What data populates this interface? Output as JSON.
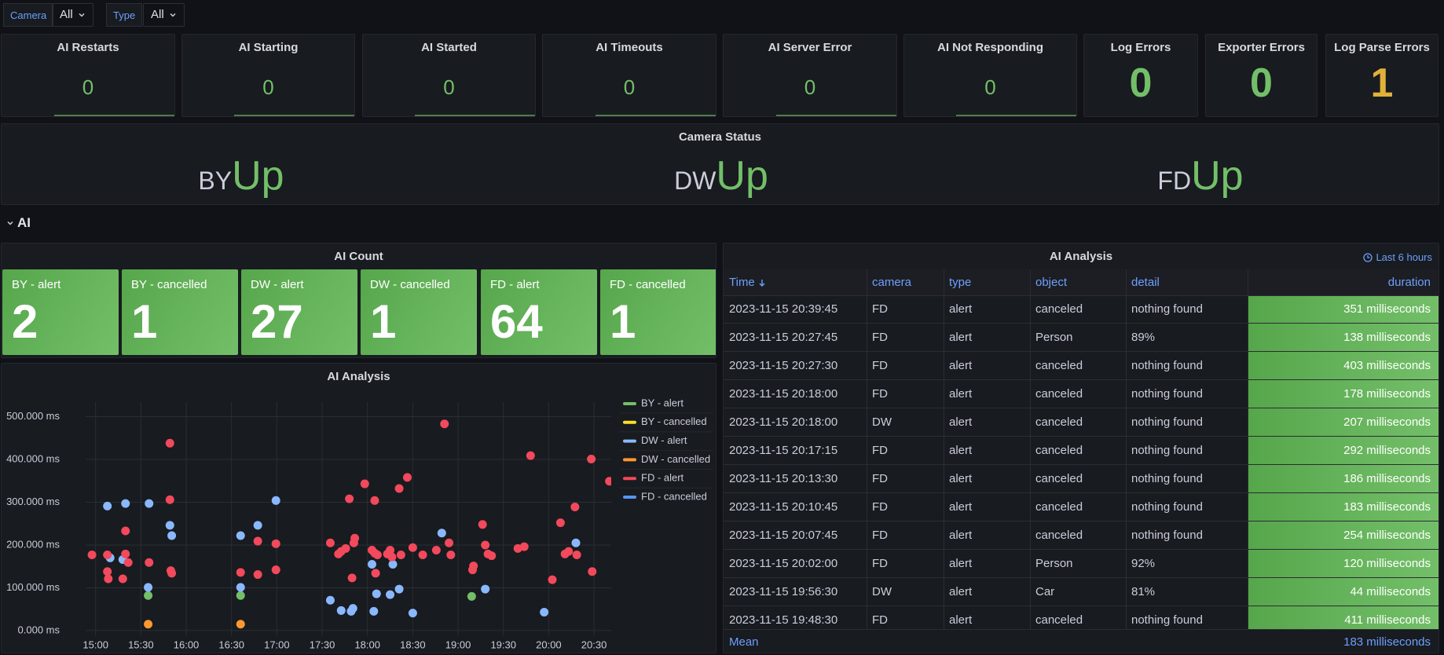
{
  "filters": [
    {
      "label": "Camera",
      "value": "All"
    },
    {
      "label": "Type",
      "value": "All"
    }
  ],
  "stats": [
    {
      "title": "AI Restarts",
      "value": 0,
      "color": "#73bf69"
    },
    {
      "title": "AI Starting",
      "value": 0,
      "color": "#73bf69"
    },
    {
      "title": "AI Started",
      "value": 0,
      "color": "#73bf69"
    },
    {
      "title": "AI Timeouts",
      "value": 0,
      "color": "#73bf69"
    },
    {
      "title": "AI Server Error",
      "value": 0,
      "color": "#73bf69"
    },
    {
      "title": "AI Not Responding",
      "value": 0,
      "color": "#73bf69"
    },
    {
      "title": "Log Errors",
      "value": 0,
      "color": "#73bf69"
    },
    {
      "title": "Exporter Errors",
      "value": 0,
      "color": "#73bf69"
    },
    {
      "title": "Log Parse Errors",
      "value": 1,
      "color": "#e0b13a"
    }
  ],
  "camera_status": {
    "title": "Camera Status",
    "color": "#73bf69",
    "items": [
      {
        "name": "BY",
        "status": "Up"
      },
      {
        "name": "DW",
        "status": "Up"
      },
      {
        "name": "FD",
        "status": "Up"
      }
    ]
  },
  "row_title": "AI",
  "ai_count": {
    "title": "AI Count",
    "tiles": [
      {
        "name": "BY - alert",
        "value": 2
      },
      {
        "name": "BY - cancelled",
        "value": 1
      },
      {
        "name": "DW - alert",
        "value": 27
      },
      {
        "name": "DW - cancelled",
        "value": 1
      },
      {
        "name": "FD - alert",
        "value": 64
      },
      {
        "name": "FD - cancelled",
        "value": 1
      }
    ]
  },
  "chart_data": {
    "type": "scatter",
    "title": "AI Analysis",
    "grid": true,
    "legend": "right",
    "xlim": [
      14.89,
      20.69
    ],
    "xticks": [
      {
        "value": 15,
        "label": "15:00"
      },
      {
        "value": 15.5,
        "label": "15:30"
      },
      {
        "value": 16,
        "label": "16:00"
      },
      {
        "value": 16.5,
        "label": "16:30"
      },
      {
        "value": 17,
        "label": "17:00"
      },
      {
        "value": 17.5,
        "label": "17:30"
      },
      {
        "value": 18,
        "label": "18:00"
      },
      {
        "value": 18.5,
        "label": "18:30"
      },
      {
        "value": 19,
        "label": "19:00"
      },
      {
        "value": 19.5,
        "label": "19:30"
      },
      {
        "value": 20,
        "label": "20:00"
      },
      {
        "value": 20.5,
        "label": "20:30"
      }
    ],
    "ylim": [
      -13,
      534
    ],
    "yticks": [
      {
        "value": 0,
        "label": "0.000 ms"
      },
      {
        "value": 100,
        "label": "100.000 ms"
      },
      {
        "value": 200,
        "label": "200.000 ms"
      },
      {
        "value": 300,
        "label": "300.000 ms"
      },
      {
        "value": 400,
        "label": "400.000 ms"
      },
      {
        "value": 500,
        "label": "500.000 ms"
      }
    ],
    "series": [
      {
        "name": "BY - alert",
        "color": "#73bf69",
        "x": [
          15.58,
          16.6,
          19.15
        ],
        "values": [
          82,
          82,
          80
        ]
      },
      {
        "name": "BY - cancelled",
        "color": "#fade2a",
        "x": [],
        "values": []
      },
      {
        "name": "DW - alert",
        "color": "#8ab8ff",
        "x": [
          15.13,
          15.33,
          15.59,
          15.16,
          15.3,
          15.58,
          15.82,
          15.84,
          16.6,
          16.79,
          16.99,
          16.6,
          17.59,
          17.71,
          17.82,
          17.84,
          18.05,
          18.1,
          18.07,
          18.25,
          18.28,
          18.35,
          18.5,
          18.82,
          19.3,
          19.95,
          20.3
        ],
        "values": [
          291,
          297,
          297,
          170,
          166,
          101,
          246,
          222,
          222,
          246,
          304,
          101,
          71,
          47,
          45,
          52,
          155,
          86,
          45,
          84,
          155,
          97,
          41,
          228,
          97,
          43,
          205
        ]
      },
      {
        "name": "DW - cancelled",
        "color": "#ff9830",
        "x": [
          15.58,
          16.6
        ],
        "values": [
          15,
          15
        ]
      },
      {
        "name": "FD - alert",
        "color": "#f2495c",
        "x": [
          14.96,
          15.13,
          15.13,
          15.14,
          15.3,
          15.33,
          15.33,
          15.36,
          15.59,
          15.82,
          15.82,
          15.83,
          15.84,
          16.6,
          16.79,
          16.79,
          16.99,
          16.99,
          17.59,
          17.68,
          17.71,
          17.76,
          17.8,
          17.83,
          17.85,
          17.86,
          17.97,
          18.05,
          18.08,
          18.08,
          18.11,
          18.09,
          18.22,
          18.25,
          18.27,
          18.35,
          18.37,
          18.44,
          18.5,
          18.61,
          18.76,
          18.85,
          18.9,
          18.92,
          19.16,
          19.17,
          19.27,
          19.3,
          19.33,
          19.37,
          19.66,
          19.73,
          19.8,
          20.04,
          20.13,
          20.18,
          20.22,
          20.29,
          20.31,
          20.47,
          20.48,
          20.67
        ],
        "values": [
          177,
          177,
          138,
          121,
          121,
          233,
          179,
          159,
          159,
          438,
          306,
          140,
          134,
          136,
          209,
          131,
          203,
          142,
          205,
          179,
          185,
          192,
          308,
          123,
          205,
          216,
          343,
          188,
          304,
          181,
          177,
          134,
          179,
          188,
          172,
          332,
          177,
          358,
          194,
          177,
          188,
          483,
          205,
          177,
          142,
          151,
          248,
          200,
          179,
          175,
          192,
          196,
          409,
          119,
          252,
          179,
          185,
          289,
          177,
          401,
          138,
          349
        ]
      },
      {
        "name": "FD - cancelled",
        "color": "#5794f2",
        "x": [],
        "values": []
      }
    ]
  },
  "table": {
    "title": "AI Analysis",
    "time_range": "Last 6 hours",
    "columns": [
      "Time",
      "camera",
      "type",
      "object",
      "detail",
      "duration"
    ],
    "rows": [
      [
        "2023-11-15 20:39:45",
        "FD",
        "alert",
        "canceled",
        "nothing found",
        "351 milliseconds"
      ],
      [
        "2023-11-15 20:27:45",
        "FD",
        "alert",
        "Person",
        "89%",
        "138 milliseconds"
      ],
      [
        "2023-11-15 20:27:30",
        "FD",
        "alert",
        "canceled",
        "nothing found",
        "403 milliseconds"
      ],
      [
        "2023-11-15 20:18:00",
        "FD",
        "alert",
        "canceled",
        "nothing found",
        "178 milliseconds"
      ],
      [
        "2023-11-15 20:18:00",
        "DW",
        "alert",
        "canceled",
        "nothing found",
        "207 milliseconds"
      ],
      [
        "2023-11-15 20:17:15",
        "FD",
        "alert",
        "canceled",
        "nothing found",
        "292 milliseconds"
      ],
      [
        "2023-11-15 20:13:30",
        "FD",
        "alert",
        "canceled",
        "nothing found",
        "186 milliseconds"
      ],
      [
        "2023-11-15 20:10:45",
        "FD",
        "alert",
        "canceled",
        "nothing found",
        "183 milliseconds"
      ],
      [
        "2023-11-15 20:07:45",
        "FD",
        "alert",
        "canceled",
        "nothing found",
        "254 milliseconds"
      ],
      [
        "2023-11-15 20:02:00",
        "FD",
        "alert",
        "Person",
        "92%",
        "120 milliseconds"
      ],
      [
        "2023-11-15 19:56:30",
        "DW",
        "alert",
        "Car",
        "81%",
        "44 milliseconds"
      ],
      [
        "2023-11-15 19:48:30",
        "FD",
        "alert",
        "canceled",
        "nothing found",
        "411 milliseconds"
      ]
    ],
    "footer": [
      "Mean",
      "183 milliseconds"
    ]
  }
}
